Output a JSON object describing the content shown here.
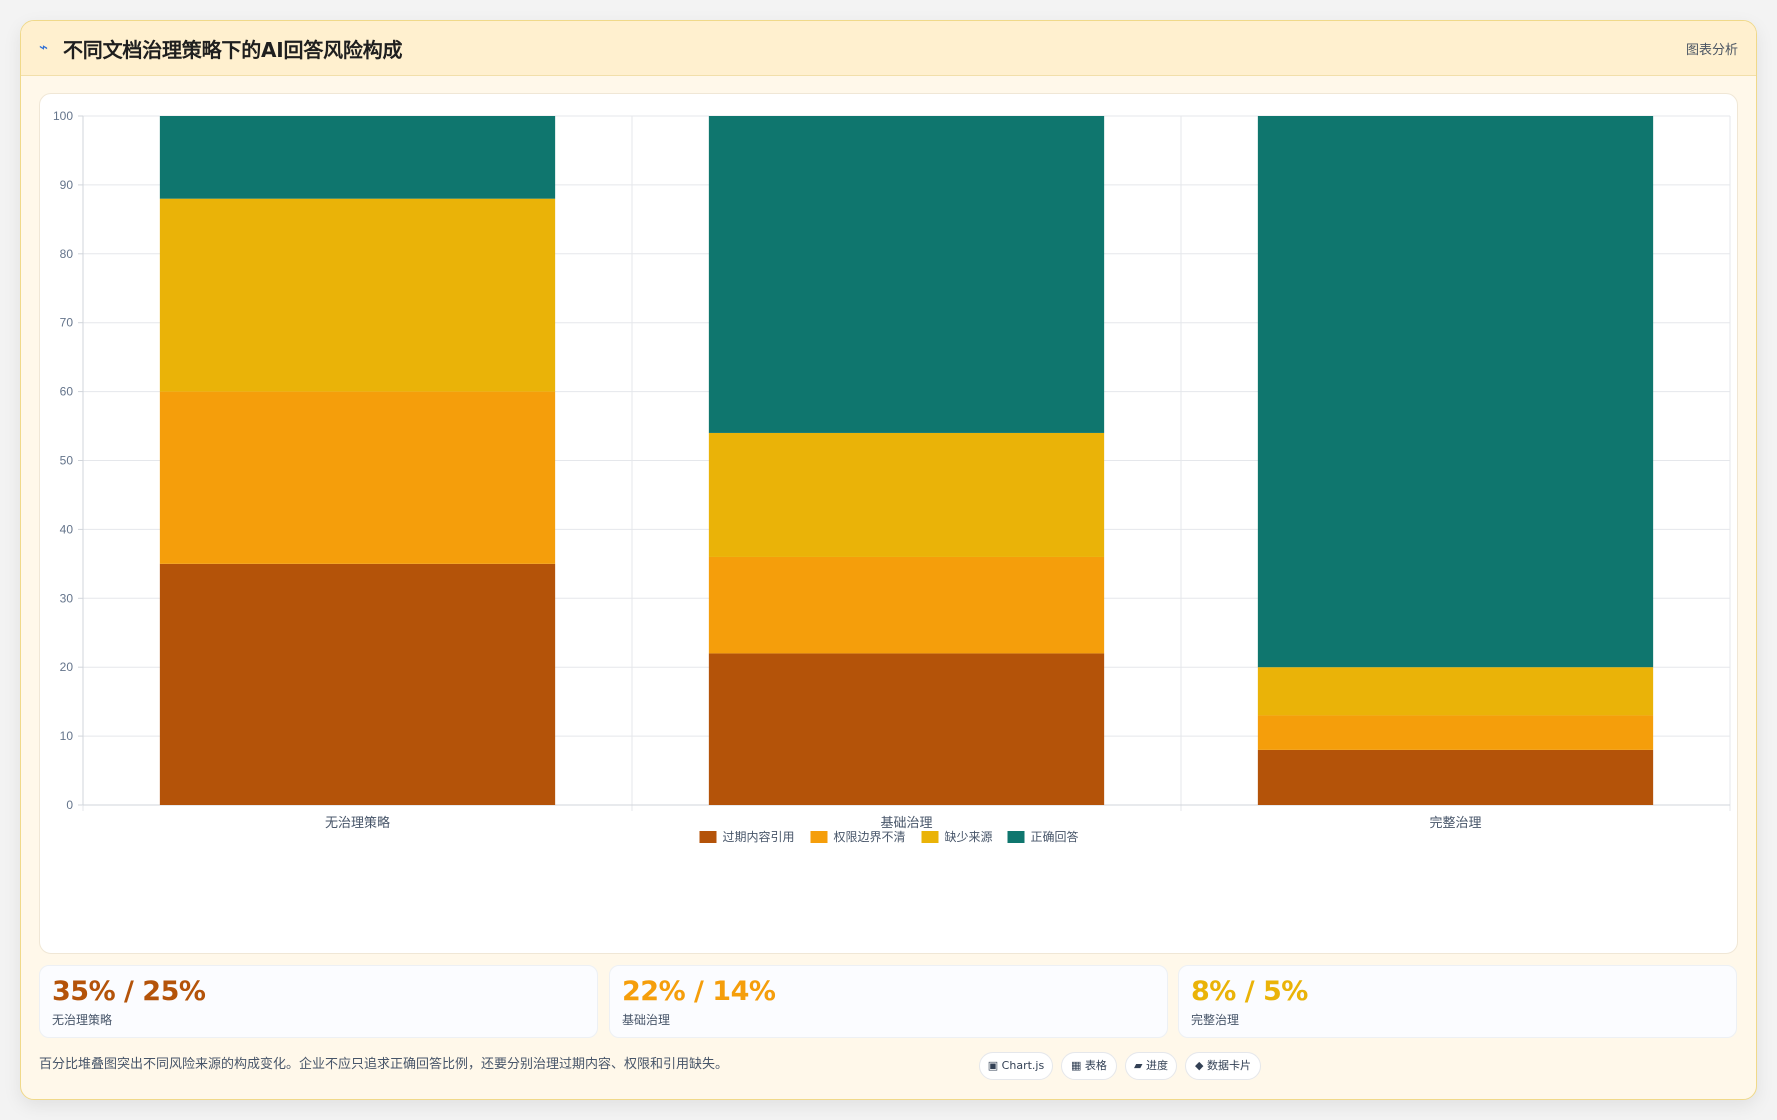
{
  "header": {
    "title": "不同文档治理策略下的AI回答风险构成",
    "action": "图表分析",
    "icon": "trend-icon"
  },
  "chart_data": {
    "type": "bar",
    "stacked": true,
    "categories": [
      "无治理策略",
      "基础治理",
      "完整治理"
    ],
    "series": [
      {
        "name": "过期内容引用",
        "values": [
          35,
          22,
          8
        ],
        "color": "#b45309"
      },
      {
        "name": "权限边界不清",
        "values": [
          25,
          14,
          5
        ],
        "color": "#f59e0b"
      },
      {
        "name": "缺少来源",
        "values": [
          28,
          18,
          7
        ],
        "color": "#eab308"
      },
      {
        "name": "正确回答",
        "values": [
          12,
          46,
          80
        ],
        "color": "#0f766e"
      }
    ],
    "yaxis": {
      "ticks": [
        "0",
        "10",
        "20",
        "30",
        "40",
        "50",
        "60",
        "70",
        "80",
        "90",
        "100"
      ],
      "min": 0,
      "max": 100
    },
    "legend_position": "bottom",
    "grid": true
  },
  "kpis": [
    {
      "value": "35% / 25%",
      "label": "无治理策略",
      "color": "#b45309"
    },
    {
      "value": "22% / 14%",
      "label": "基础治理",
      "color": "#f59e0b"
    },
    {
      "value": "8% / 5%",
      "label": "完整治理",
      "color": "#eab308"
    }
  ],
  "footer": {
    "note": "百分比堆叠图突出不同风险来源的构成变化。企业不应只追求正确回答比例，还要分别治理过期内容、权限和引用缺失。",
    "chips": [
      {
        "label": "▣ Chart.js"
      },
      {
        "label": "▦ 表格"
      },
      {
        "label": "▰ 进度"
      },
      {
        "label": "◆ 数据卡片"
      }
    ]
  }
}
